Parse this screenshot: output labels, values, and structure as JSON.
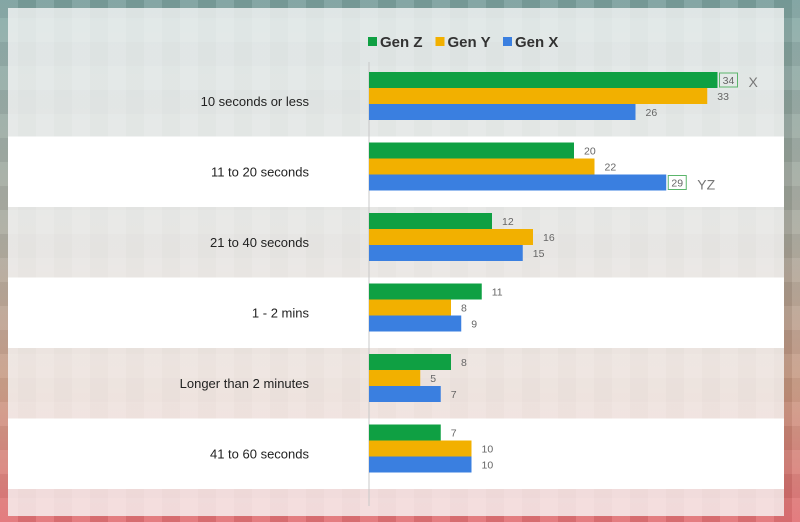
{
  "chart_data": {
    "type": "bar",
    "orientation": "horizontal",
    "categories": [
      "10 seconds or less",
      "11 to 20 seconds",
      "21 to 40 seconds",
      "1 - 2 mins",
      "Longer than 2 minutes",
      "41 to 60 seconds"
    ],
    "series": [
      {
        "name": "Gen Z",
        "color": "#0fa043",
        "values": [
          34,
          20,
          12,
          11,
          8,
          7
        ]
      },
      {
        "name": "Gen Y",
        "color": "#f2b000",
        "values": [
          33,
          22,
          16,
          8,
          5,
          10
        ]
      },
      {
        "name": "Gen X",
        "color": "#3a7fe0",
        "values": [
          26,
          29,
          15,
          9,
          7,
          10
        ]
      }
    ],
    "xlim": [
      0,
      35
    ],
    "legend_position": "top",
    "annotations": [
      {
        "category": "10 seconds or less",
        "series": "Gen Z",
        "text": "X"
      },
      {
        "category": "11 to 20 seconds",
        "series": "Gen X",
        "text": "YZ"
      }
    ]
  }
}
